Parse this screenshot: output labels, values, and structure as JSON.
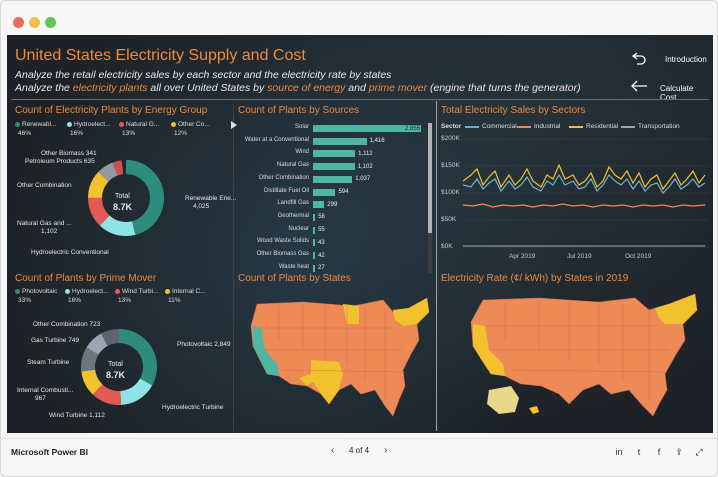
{
  "window": {
    "controls": {
      "close_color": "#ec6a5e",
      "min_color": "#f4bf4f",
      "max_color": "#61c554"
    }
  },
  "report": {
    "title": "United States Electricity Supply and Cost",
    "subtitle1": "Analyze the retail electricity sales by each sector and the electricity rate by states",
    "subtitle2": {
      "p1": "Analyze the ",
      "hl1": "electricity plants",
      "p2": " all over United States by ",
      "hl2": "source of energy",
      "p3": " and ",
      "hl3": "prime mover",
      "p4": " (engine that turns the generator)"
    },
    "nav": {
      "introduction": "Introduction",
      "calculate_cost": "Calculate Cost"
    }
  },
  "panels": {
    "energy_group": {
      "title": "Count of Electricity Plants by Energy Group",
      "legend": [
        {
          "name": "Renewabl...",
          "pct": "46%",
          "color": "#2e8c7e"
        },
        {
          "name": "Hydroelect...",
          "pct": "16%",
          "color": "#8ee3e6"
        },
        {
          "name": "Natural G...",
          "pct": "13%",
          "color": "#e35a55"
        },
        {
          "name": "Other Co...",
          "pct": "12%",
          "color": "#f2c12e"
        }
      ],
      "center_label": "Total",
      "center_value": "8.7K",
      "labels": {
        "other_biomass": "Other Biomass 341",
        "petroleum": "Petroleum Products 635",
        "other_combination": "Other Combination",
        "natural_gas": "Natural Gas and ...",
        "natural_gas_val": "1,102",
        "hydro": "Hydroelectric Conventional",
        "renewable": "Renewable Ene...",
        "renewable_val": "4,025"
      }
    },
    "sources": {
      "title": "Count of Plants by Sources",
      "bars": [
        {
          "label": "Solar",
          "value": 2855,
          "text": "2,855"
        },
        {
          "label": "Water at a Conventional",
          "value": 1416,
          "text": "1,416"
        },
        {
          "label": "Wind",
          "value": 1112,
          "text": "1,112"
        },
        {
          "label": "Natural Gas",
          "value": 1102,
          "text": "1,102"
        },
        {
          "label": "Other Combination",
          "value": 1037,
          "text": "1,037"
        },
        {
          "label": "Distillate Fuel Oil",
          "value": 594,
          "text": "594"
        },
        {
          "label": "Landfill Gas",
          "value": 299,
          "text": "299"
        },
        {
          "label": "Geothermal",
          "value": 58,
          "text": "58"
        },
        {
          "label": "Nuclear",
          "value": 55,
          "text": "55"
        },
        {
          "label": "Wood Waste Solids",
          "value": 43,
          "text": "43"
        },
        {
          "label": "Other Biomass Gas",
          "value": 42,
          "text": "42"
        },
        {
          "label": "Waste heat",
          "value": 27,
          "text": "27"
        }
      ],
      "color": "#4fb7a1"
    },
    "sales": {
      "title": "Total Electricity Sales by Sectors",
      "legend_label": "Sector",
      "legend": [
        {
          "name": "Commercial",
          "color": "#6fb3d2"
        },
        {
          "name": "Industrial",
          "color": "#f08a5d"
        },
        {
          "name": "Residential",
          "color": "#f2c12e"
        },
        {
          "name": "Transportation",
          "color": "#9aa6b2"
        }
      ],
      "y_ticks": [
        "$200K",
        "$150K",
        "$100K",
        "$50K",
        "$0K"
      ],
      "x_ticks": [
        "Apr 2019",
        "Jul 2019",
        "Oct 2019"
      ]
    },
    "prime_mover": {
      "title": "Count of Plants by Prime Mover",
      "legend": [
        {
          "name": "Photovoltaic",
          "pct": "33%",
          "color": "#2e8c7e"
        },
        {
          "name": "Hydroelect...",
          "pct": "16%",
          "color": "#8ee3e6"
        },
        {
          "name": "Wind Turbi...",
          "pct": "13%",
          "color": "#e35a55"
        },
        {
          "name": "Internal C...",
          "pct": "11%",
          "color": "#f2c12e"
        }
      ],
      "center_label": "Total",
      "center_value": "8.7K",
      "labels": {
        "other_combination": "Other Combination 723",
        "gas_turbine": "Gas Turbine 749",
        "steam_turbine": "Steam Turbine",
        "internal_comb": "Internal Combusti...",
        "internal_comb_val": "967",
        "wind_turbine": "Wind Turbine 1,112",
        "photovoltaic": "Photovoltaic 2,849",
        "hydro_turbine": "Hydroelectric Turbine"
      }
    },
    "states": {
      "title": "Count of Plants by States"
    },
    "rate": {
      "title": "Electricity Rate (¢/ kWh) by States in 2019"
    }
  },
  "bottom": {
    "app_name": "Microsoft Power BI",
    "page": "4 of 4",
    "icons": [
      "linkedin-icon",
      "twitter-icon",
      "facebook-icon",
      "share-icon",
      "fullscreen-icon"
    ]
  }
}
